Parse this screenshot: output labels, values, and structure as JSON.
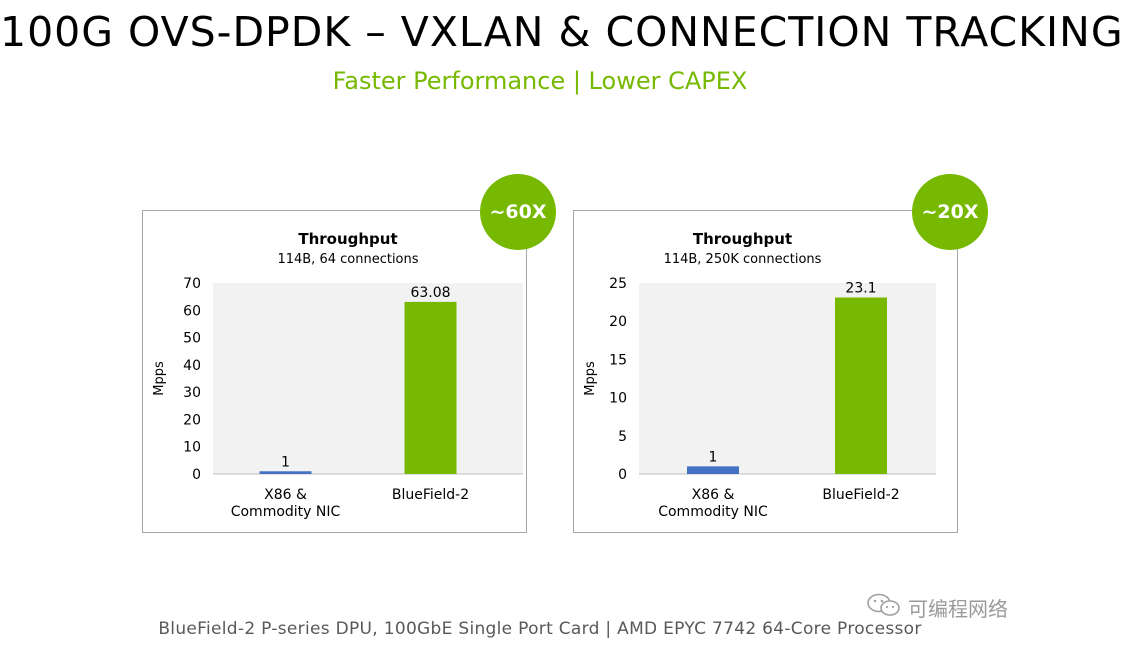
{
  "header": {
    "title": "100G OVS-DPDK – VXLAN & CONNECTION TRACKING",
    "subtitle": "Faster Performance | Lower CAPEX"
  },
  "colors": {
    "accent": "#76b900",
    "x86_bar": "#4472c4",
    "bluefield_bar": "#76b900"
  },
  "badges": [
    "~60X",
    "~20X"
  ],
  "chart_data": [
    {
      "type": "bar",
      "title": "Throughput",
      "subtitle": "114B, 64 connections",
      "ylabel": "Mpps",
      "ylim": [
        0,
        70
      ],
      "yticks": [
        0,
        10,
        20,
        30,
        40,
        50,
        60,
        70
      ],
      "categories": [
        [
          "X86 &",
          "Commodity NIC"
        ],
        [
          "BlueField-2"
        ]
      ],
      "values": [
        1,
        63.08
      ],
      "data_labels": [
        "1",
        "63.08"
      ],
      "grid": false
    },
    {
      "type": "bar",
      "title": "Throughput",
      "subtitle": "114B, 250K connections",
      "ylabel": "Mpps",
      "ylim": [
        0,
        25
      ],
      "yticks": [
        0,
        5,
        10,
        15,
        20,
        25
      ],
      "categories": [
        [
          "X86 &",
          "Commodity NIC"
        ],
        [
          "BlueField-2"
        ]
      ],
      "values": [
        1,
        23.1
      ],
      "data_labels": [
        "1",
        "23.1"
      ],
      "grid": false
    }
  ],
  "footer": "BlueField-2 P-series DPU, 100GbE Single Port Card | AMD EPYC 7742 64-Core Processor",
  "watermark": {
    "icon": "wechat-icon",
    "text": "可编程网络"
  }
}
